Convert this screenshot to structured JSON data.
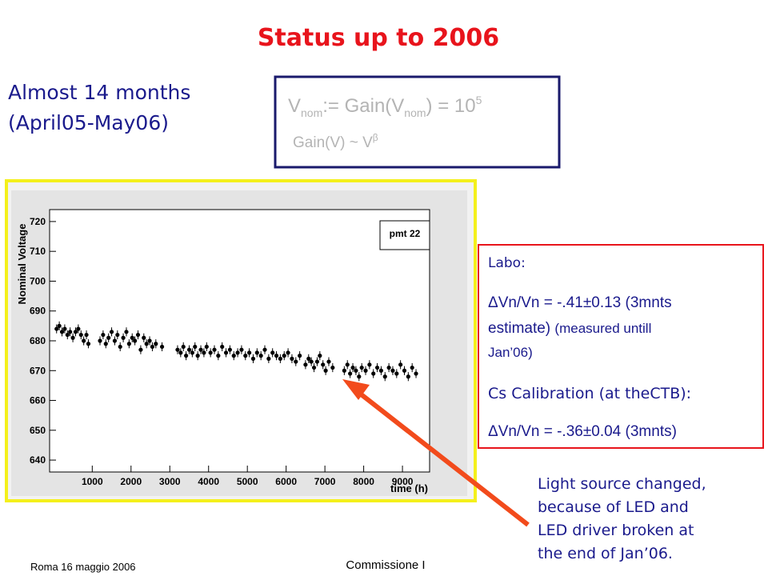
{
  "title": "Status up to 2006",
  "period": [
    "Almost 14 months",
    "(April05-May06)"
  ],
  "formula": {
    "line1": [
      "V",
      "nom",
      ":= Gain(V",
      "nom",
      ") = 10",
      "5"
    ],
    "line2": [
      "Gain(V) ~ V",
      "β"
    ]
  },
  "chart_data": {
    "type": "scatter",
    "ylabel": "Nominal Voltage",
    "xlabel": "time (h)",
    "legend": "pmt 22",
    "color": "#000000",
    "yerr": 1.5,
    "xlim": [
      -100,
      9700
    ],
    "ylim": [
      636,
      724
    ],
    "xticks": [
      1000,
      2000,
      3000,
      4000,
      5000,
      6000,
      7000,
      8000,
      9000
    ],
    "yticks": [
      640,
      650,
      660,
      670,
      680,
      690,
      700,
      710,
      720
    ],
    "x": [
      80,
      150,
      220,
      290,
      360,
      430,
      500,
      570,
      640,
      710,
      780,
      850,
      900,
      1200,
      1280,
      1350,
      1420,
      1500,
      1580,
      1650,
      1720,
      1800,
      1880,
      1950,
      2030,
      2100,
      2180,
      2250,
      2330,
      2400,
      2480,
      2550,
      2640,
      2800,
      3200,
      3280,
      3350,
      3420,
      3500,
      3580,
      3650,
      3720,
      3800,
      3880,
      3950,
      4050,
      4150,
      4250,
      4350,
      4450,
      4550,
      4650,
      4750,
      4850,
      4950,
      5050,
      5150,
      5250,
      5350,
      5450,
      5550,
      5650,
      5750,
      5850,
      5950,
      6050,
      6150,
      6250,
      6350,
      6500,
      6580,
      6650,
      6720,
      6800,
      6870,
      6950,
      7020,
      7100,
      7200,
      7500,
      7580,
      7650,
      7720,
      7800,
      7880,
      7950,
      8050,
      8150,
      8250,
      8350,
      8450,
      8550,
      8650,
      8750,
      8850,
      8950,
      9050,
      9150,
      9250,
      9350
    ],
    "values": [
      684,
      685,
      683,
      684,
      682,
      683,
      681,
      683,
      684,
      682,
      680,
      682,
      679,
      680,
      682,
      679,
      681,
      683,
      680,
      682,
      678,
      681,
      683,
      679,
      681,
      680,
      682,
      677,
      681,
      679,
      680,
      678,
      679,
      678,
      677,
      676,
      678,
      675,
      677,
      676,
      678,
      675,
      677,
      676,
      678,
      676,
      677,
      675,
      678,
      676,
      677,
      675,
      676,
      677,
      675,
      676,
      674,
      676,
      675,
      677,
      674,
      676,
      675,
      674,
      675,
      676,
      674,
      673,
      675,
      672,
      674,
      673,
      671,
      673,
      675,
      672,
      670,
      673,
      671,
      670,
      672,
      669,
      671,
      670,
      668,
      671,
      670,
      672,
      669,
      671,
      670,
      668,
      671,
      670,
      669,
      672,
      670,
      668,
      671,
      669
    ]
  },
  "labo": [
    "Labo:",
    "ΔVn/Vn = -.41±0.13 (3mnts",
    "estimate)",
    "(measured untill",
    "Jan’06)",
    "Cs Calibration (at theCTB):",
    "ΔVn/Vn = -.36±0.04 (3mnts)"
  ],
  "note": [
    "Light source changed,",
    "because of LED and",
    "LED driver broken at",
    "the end of Jan’06."
  ],
  "footer": {
    "left": "Roma 16 maggio 2006",
    "center": "Commissione I"
  }
}
